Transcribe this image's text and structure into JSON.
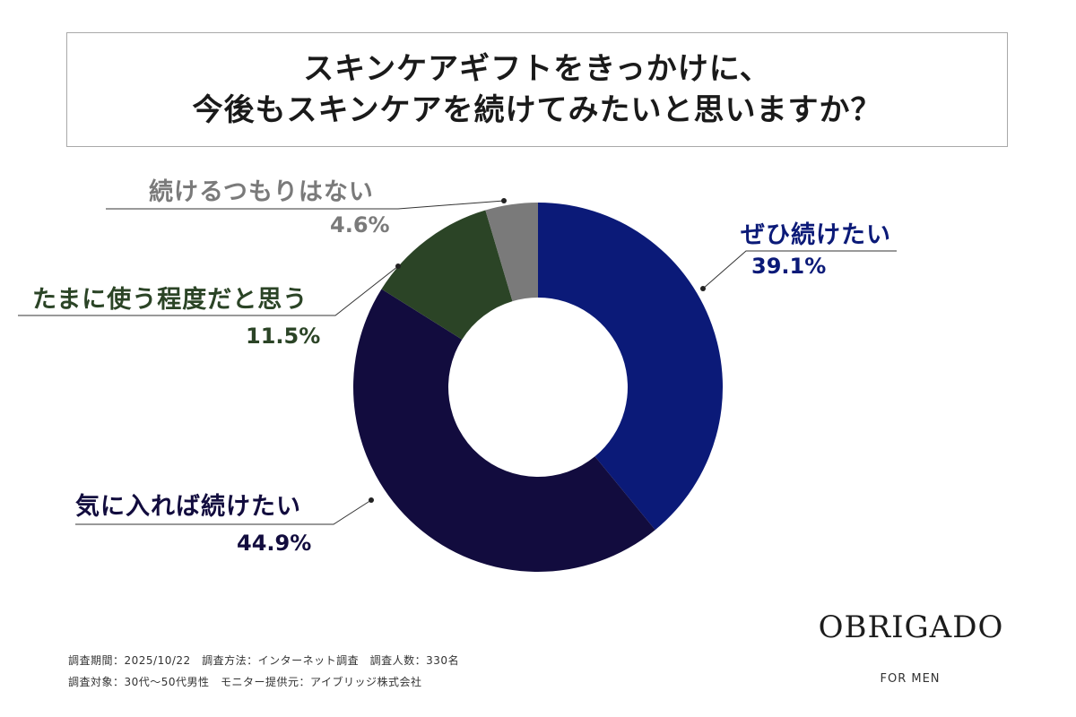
{
  "title": {
    "line1": "スキンケアギフトをきっかけに、",
    "line2": "今後もスキンケアを続けてみたいと思いますか？"
  },
  "chart_data": {
    "type": "pie",
    "donut": true,
    "start_angle": "12 o'clock, clockwise",
    "slices": [
      {
        "label": "ぜひ続けたい",
        "value": 39.1,
        "value_label": "39.1%",
        "color": "#0b1a78"
      },
      {
        "label": "気に入れば続けたい",
        "value": 44.9,
        "value_label": "44.9%",
        "color": "#120c3e"
      },
      {
        "label": "たまに使う程度だと思う",
        "value": 11.5,
        "value_label": "11.5%",
        "color": "#2b4426"
      },
      {
        "label": "続けるつもりはない",
        "value": 4.6,
        "value_label": "4.6%",
        "color": "#7a7a7a"
      }
    ]
  },
  "footer": {
    "line1": "調査期間：2025/10/22　調査方法：インターネット調査　調査人数：330名",
    "line2": "調査対象：30代〜50代男性　モニター提供元：アイブリッジ株式会社"
  },
  "brand": {
    "name": "OBRIGADO",
    "sub": "FOR MEN"
  }
}
